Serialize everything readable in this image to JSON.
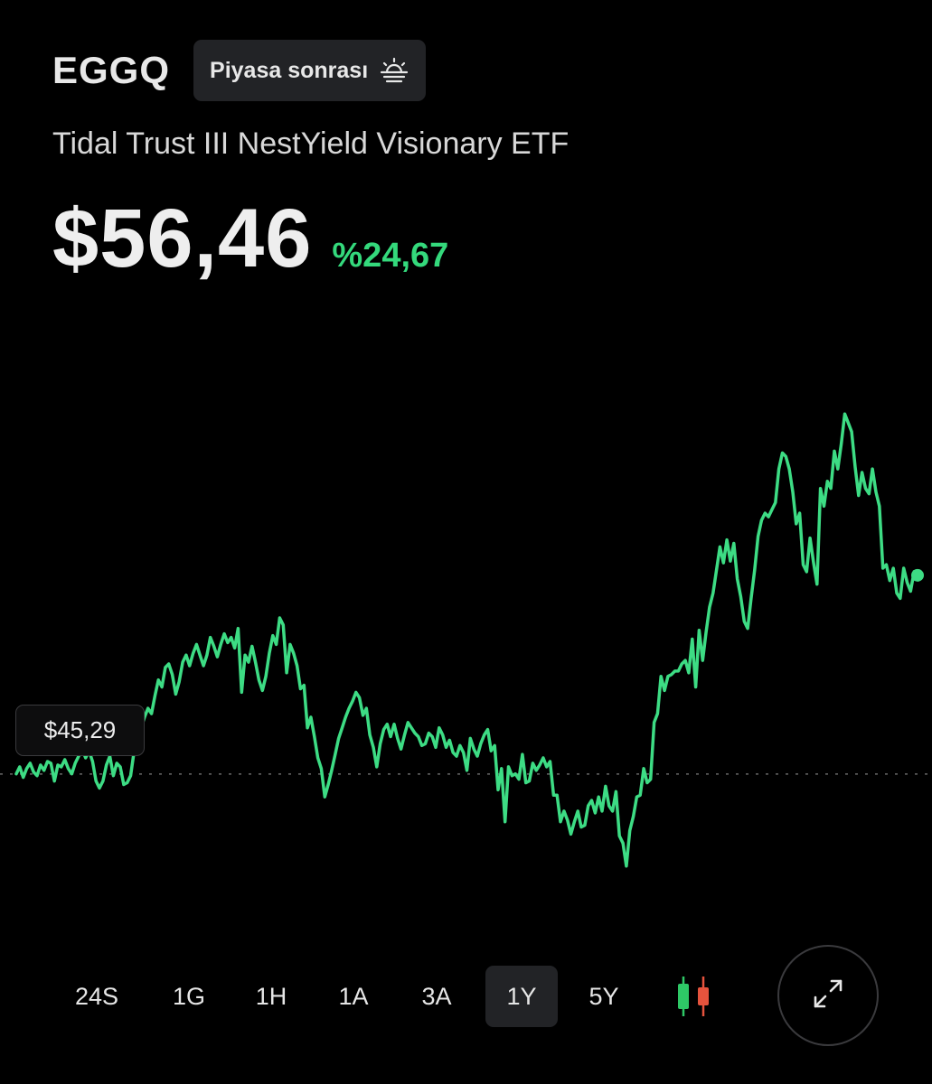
{
  "header": {
    "ticker": "EGGQ",
    "session_label": "Piyasa sonrası",
    "session_icon": "sunset-icon"
  },
  "fund": {
    "name": "Tidal Trust III NestYield Visionary ETF"
  },
  "quote": {
    "price": "$56,46",
    "change_percent": "%24,67"
  },
  "chart": {
    "baseline_label": "$45,29",
    "range_selected": "1Y"
  },
  "chart_data": {
    "type": "line",
    "title": "",
    "baseline": 45.29,
    "last": 56.46,
    "ylim": [
      38,
      65
    ],
    "series": [
      {
        "values": [
          45.3,
          45.7,
          45.1,
          45.6,
          45.9,
          45.4,
          45.2,
          45.8,
          45.5,
          46.0,
          45.9,
          44.9,
          45.8,
          45.7,
          46.1,
          45.6,
          45.3,
          45.9,
          46.3,
          46.7,
          46.2,
          46.6,
          46.0,
          44.9,
          44.5,
          44.9,
          45.8,
          46.3,
          45.2,
          45.9,
          45.7,
          44.7,
          44.8,
          45.2,
          46.6,
          47.0,
          47.9,
          48.5,
          49.0,
          48.7,
          49.7,
          50.6,
          50.2,
          51.3,
          51.5,
          50.9,
          49.8,
          50.5,
          51.6,
          52.0,
          51.4,
          52.1,
          52.6,
          52.0,
          51.4,
          52.0,
          53.0,
          52.5,
          51.9,
          52.6,
          53.2,
          52.7,
          53.0,
          52.4,
          53.5,
          49.9,
          52.0,
          51.6,
          52.5,
          51.6,
          50.6,
          50.0,
          50.8,
          52.1,
          53.1,
          52.6,
          54.1,
          53.7,
          51.0,
          52.6,
          52.1,
          51.4,
          50.1,
          50.3,
          47.9,
          48.5,
          47.4,
          46.2,
          45.6,
          44.0,
          44.7,
          45.5,
          46.4,
          47.3,
          47.9,
          48.5,
          49.0,
          49.4,
          49.9,
          49.6,
          48.6,
          49.0,
          47.5,
          46.8,
          45.7,
          47.0,
          47.8,
          48.1,
          47.4,
          48.1,
          47.3,
          46.7,
          47.5,
          48.2,
          47.9,
          47.6,
          47.4,
          46.9,
          47.0,
          47.6,
          47.4,
          46.8,
          47.9,
          47.5,
          46.8,
          47.2,
          46.5,
          46.3,
          46.9,
          46.5,
          45.5,
          47.3,
          46.7,
          46.3,
          47.0,
          47.5,
          47.8,
          46.6,
          46.9,
          44.4,
          45.6,
          42.6,
          45.7,
          45.2,
          45.3,
          45.0,
          46.4,
          44.8,
          44.9,
          45.9,
          45.5,
          45.8,
          46.2,
          45.7,
          46.0,
          44.1,
          44.1,
          42.6,
          43.2,
          42.7,
          41.9,
          42.6,
          43.2,
          42.3,
          42.4,
          43.5,
          43.8,
          43.1,
          44.0,
          43.2,
          44.6,
          43.5,
          43.2,
          44.3,
          41.8,
          41.4,
          40.1,
          42.1,
          42.9,
          44.0,
          44.1,
          45.6,
          44.8,
          45.0,
          48.2,
          48.7,
          50.8,
          50.0,
          50.8,
          50.9,
          51.1,
          51.1,
          51.5,
          51.7,
          51.0,
          52.9,
          50.2,
          53.4,
          51.7,
          53.3,
          54.7,
          55.5,
          56.8,
          58.1,
          57.2,
          58.5,
          57.3,
          58.3,
          56.3,
          55.3,
          53.9,
          53.5,
          55.2,
          56.8,
          58.7,
          59.6,
          60.0,
          59.8,
          60.2,
          60.6,
          62.5,
          63.4,
          63.2,
          62.5,
          61.2,
          59.4,
          60.0,
          57.1,
          56.7,
          58.6,
          57.2,
          56.0,
          61.4,
          60.4,
          61.8,
          61.4,
          63.5,
          62.5,
          63.9,
          65.6,
          65.1,
          64.6,
          62.6,
          61.0,
          62.3,
          61.4,
          61.1,
          62.5,
          61.2,
          60.4,
          56.9,
          57.1,
          56.2,
          56.9,
          55.5,
          55.2,
          56.9,
          56.1,
          55.6,
          56.7,
          56.5
        ]
      }
    ]
  },
  "ranges": [
    "24S",
    "1G",
    "1H",
    "1A",
    "3A",
    "1Y",
    "5Y"
  ],
  "controls": {
    "candle_icon": "candlestick-icon",
    "expand_icon": "expand-icon"
  },
  "colors": {
    "line": "#3ddc84",
    "change": "#34d97c",
    "candle_up": "#2ec866",
    "candle_down": "#e5533d",
    "background": "#000000"
  }
}
